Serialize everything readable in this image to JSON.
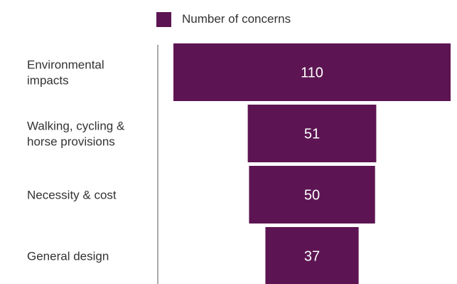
{
  "chart_data": {
    "type": "bar",
    "orientation": "horizontal-funnel",
    "categories": [
      [
        "Environmental",
        "impacts"
      ],
      [
        "Walking, cycling &",
        "horse provisions"
      ],
      [
        "Necessity & cost"
      ],
      [
        "General design"
      ]
    ],
    "series": [
      {
        "name": "Number of concerns",
        "values": [
          110,
          51,
          50,
          37
        ]
      }
    ],
    "data_labels": [
      "110",
      "51",
      "50",
      "37"
    ],
    "legend_position": "top",
    "grid": false,
    "bar_alignment": "centered",
    "colors": {
      "bar": "#5c1552",
      "data_label": "#ffffff",
      "category_label": "#333333",
      "axis_line": "#555555"
    }
  }
}
